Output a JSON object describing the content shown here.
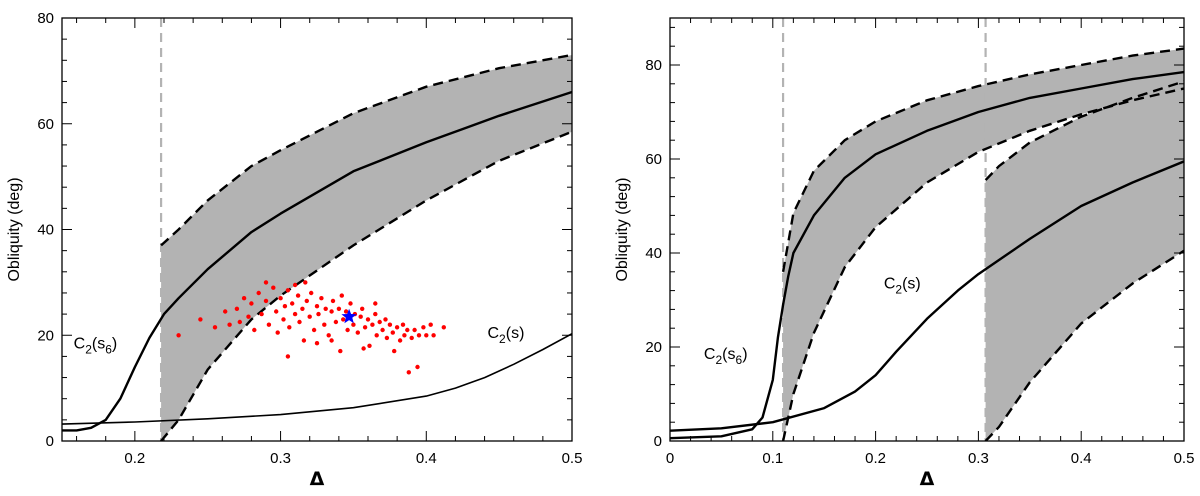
{
  "chart_data": [
    {
      "type": "line",
      "panel": "left",
      "xlabel": "Δ",
      "ylabel": "Obliquity (deg)",
      "xlim": [
        0.15,
        0.5
      ],
      "ylim": [
        0,
        80
      ],
      "xticks": [
        0.2,
        0.3,
        0.4,
        0.5
      ],
      "xtick_labels": [
        "0.2",
        "0.3",
        "0.4",
        "0.5"
      ],
      "yticks": [
        0,
        20,
        40,
        60,
        80
      ],
      "ytick_labels": [
        "0",
        "20",
        "40",
        "60",
        "80"
      ],
      "band": {
        "x": [
          0.218,
          0.23,
          0.25,
          0.28,
          0.3,
          0.35,
          0.4,
          0.45,
          0.5
        ],
        "upper": [
          37,
          40,
          45.5,
          52,
          55,
          62,
          67,
          70.5,
          73
        ],
        "lower": [
          0,
          4,
          13.5,
          23,
          27.5,
          37,
          45.5,
          53,
          58.5
        ]
      },
      "vline_x": 0.218,
      "series": [
        {
          "name": "C2(s6)",
          "x": [
            0.15,
            0.16,
            0.17,
            0.18,
            0.19,
            0.2,
            0.21,
            0.22,
            0.23,
            0.25,
            0.28,
            0.3,
            0.35,
            0.4,
            0.45,
            0.5
          ],
          "values": [
            2,
            2,
            2.5,
            4,
            8,
            14,
            19.5,
            24,
            27,
            32.5,
            39.5,
            43,
            51,
            56.5,
            61.5,
            66
          ]
        },
        {
          "name": "C2(s)",
          "x": [
            0.15,
            0.2,
            0.25,
            0.3,
            0.35,
            0.4,
            0.42,
            0.44,
            0.46,
            0.48,
            0.5
          ],
          "values": [
            3.2,
            3.6,
            4.2,
            5.0,
            6.3,
            8.5,
            10.0,
            12.0,
            14.5,
            17.3,
            20.3
          ]
        }
      ],
      "scatter": {
        "name": "samples",
        "color": "#ff0000",
        "points": [
          [
            0.23,
            20
          ],
          [
            0.245,
            23
          ],
          [
            0.255,
            21.5
          ],
          [
            0.262,
            24.5
          ],
          [
            0.265,
            22
          ],
          [
            0.27,
            25
          ],
          [
            0.272,
            22.5
          ],
          [
            0.275,
            27
          ],
          [
            0.278,
            23.5
          ],
          [
            0.28,
            26
          ],
          [
            0.282,
            21
          ],
          [
            0.285,
            28
          ],
          [
            0.287,
            24
          ],
          [
            0.29,
            26.5
          ],
          [
            0.292,
            22
          ],
          [
            0.295,
            29
          ],
          [
            0.297,
            24.5
          ],
          [
            0.298,
            20.5
          ],
          [
            0.3,
            27
          ],
          [
            0.302,
            23
          ],
          [
            0.303,
            25.5
          ],
          [
            0.305,
            28.5
          ],
          [
            0.306,
            21.5
          ],
          [
            0.308,
            26
          ],
          [
            0.31,
            24
          ],
          [
            0.312,
            27.5
          ],
          [
            0.313,
            22.5
          ],
          [
            0.315,
            25
          ],
          [
            0.316,
            19
          ],
          [
            0.318,
            26.5
          ],
          [
            0.32,
            23.5
          ],
          [
            0.321,
            28
          ],
          [
            0.323,
            21
          ],
          [
            0.325,
            25.5
          ],
          [
            0.326,
            24
          ],
          [
            0.328,
            27
          ],
          [
            0.33,
            22
          ],
          [
            0.331,
            25
          ],
          [
            0.333,
            20
          ],
          [
            0.335,
            24.5
          ],
          [
            0.336,
            26.5
          ],
          [
            0.338,
            22.5
          ],
          [
            0.34,
            25
          ],
          [
            0.341,
            17
          ],
          [
            0.343,
            23
          ],
          [
            0.345,
            24.5
          ],
          [
            0.346,
            21
          ],
          [
            0.348,
            26
          ],
          [
            0.35,
            22
          ],
          [
            0.351,
            24
          ],
          [
            0.353,
            20.5
          ],
          [
            0.355,
            23.5
          ],
          [
            0.356,
            25
          ],
          [
            0.358,
            21.5
          ],
          [
            0.36,
            23
          ],
          [
            0.361,
            18
          ],
          [
            0.363,
            22
          ],
          [
            0.365,
            24
          ],
          [
            0.366,
            20
          ],
          [
            0.368,
            22.5
          ],
          [
            0.37,
            21
          ],
          [
            0.372,
            23
          ],
          [
            0.373,
            19.5
          ],
          [
            0.375,
            22
          ],
          [
            0.377,
            20.5
          ],
          [
            0.378,
            17
          ],
          [
            0.38,
            21.5
          ],
          [
            0.382,
            19
          ],
          [
            0.384,
            22
          ],
          [
            0.385,
            20
          ],
          [
            0.387,
            21
          ],
          [
            0.388,
            13
          ],
          [
            0.39,
            19.5
          ],
          [
            0.392,
            21
          ],
          [
            0.394,
            14
          ],
          [
            0.395,
            20
          ],
          [
            0.398,
            21.5
          ],
          [
            0.4,
            20
          ],
          [
            0.403,
            22
          ],
          [
            0.405,
            20
          ],
          [
            0.412,
            21.5
          ],
          [
            0.305,
            16
          ],
          [
            0.325,
            18.5
          ],
          [
            0.29,
            30
          ],
          [
            0.31,
            29.5
          ],
          [
            0.335,
            19
          ],
          [
            0.357,
            17.5
          ],
          [
            0.365,
            26
          ],
          [
            0.317,
            30
          ],
          [
            0.342,
            27.5
          ]
        ]
      },
      "marker": {
        "name": "star",
        "x": 0.347,
        "y": 23.5,
        "color": "#0000ff"
      },
      "annotations": [
        {
          "base": "C",
          "sub": "2",
          "arg": "s",
          "argsub": "6",
          "x": 0.158,
          "y": 17.5
        },
        {
          "base": "C",
          "sub": "2",
          "arg": "s",
          "argsub": "",
          "x": 0.442,
          "y": 19.5
        }
      ]
    },
    {
      "type": "line",
      "panel": "right",
      "xlabel": "Δ",
      "ylabel": "Obliquity (deg)",
      "xlim": [
        0,
        0.5
      ],
      "ylim": [
        0,
        90
      ],
      "xticks": [
        0,
        0.1,
        0.2,
        0.3,
        0.4,
        0.5
      ],
      "xtick_labels": [
        "0",
        "0.1",
        "0.2",
        "0.3",
        "0.4",
        "0.5"
      ],
      "yticks": [
        0,
        20,
        40,
        60,
        80
      ],
      "ytick_labels": [
        "0",
        "20",
        "40",
        "60",
        "80"
      ],
      "bands": [
        {
          "x": [
            0.11,
            0.12,
            0.14,
            0.17,
            0.2,
            0.25,
            0.3,
            0.35,
            0.4,
            0.45,
            0.5
          ],
          "upper": [
            36,
            48.5,
            57.5,
            64,
            68,
            72.5,
            75.5,
            78,
            80,
            82,
            83.5
          ],
          "lower": [
            0,
            10,
            23,
            37,
            45.5,
            55,
            61.5,
            66,
            69.5,
            72.5,
            75
          ]
        },
        {
          "x": [
            0.307,
            0.32,
            0.35,
            0.4,
            0.45,
            0.5
          ],
          "upper": [
            55.5,
            58.5,
            63.5,
            69,
            73,
            76.5
          ],
          "lower": [
            0,
            3,
            12.5,
            25,
            33.5,
            40.5
          ]
        }
      ],
      "vlines_x": [
        0.11,
        0.307
      ],
      "series": [
        {
          "name": "C2(s6)",
          "x": [
            0,
            0.05,
            0.08,
            0.09,
            0.1,
            0.105,
            0.11,
            0.115,
            0.12,
            0.14,
            0.17,
            0.2,
            0.25,
            0.3,
            0.35,
            0.4,
            0.45,
            0.5
          ],
          "values": [
            0.6,
            1,
            2.5,
            5,
            13,
            22,
            29,
            35,
            40,
            48,
            56,
            61,
            66,
            70,
            73,
            75,
            77,
            78.5
          ]
        },
        {
          "name": "C2(s)",
          "x": [
            0,
            0.05,
            0.1,
            0.15,
            0.18,
            0.2,
            0.22,
            0.25,
            0.28,
            0.3,
            0.35,
            0.4,
            0.45,
            0.5
          ],
          "values": [
            2.2,
            2.7,
            4,
            7,
            10.5,
            14,
            19,
            26,
            32,
            35.5,
            43,
            50,
            55,
            59.5
          ]
        }
      ],
      "annotations": [
        {
          "base": "C",
          "sub": "2",
          "arg": "s",
          "argsub": "6",
          "x": 0.033,
          "y": 17.5
        },
        {
          "base": "C",
          "sub": "2",
          "arg": "s",
          "argsub": "",
          "x": 0.208,
          "y": 32.5
        }
      ]
    }
  ],
  "colors": {
    "band": "#b3b3b3",
    "vline": "#b3b3b3",
    "curve": "#000000",
    "scatter": "#ff0000",
    "star": "#0000ff"
  }
}
